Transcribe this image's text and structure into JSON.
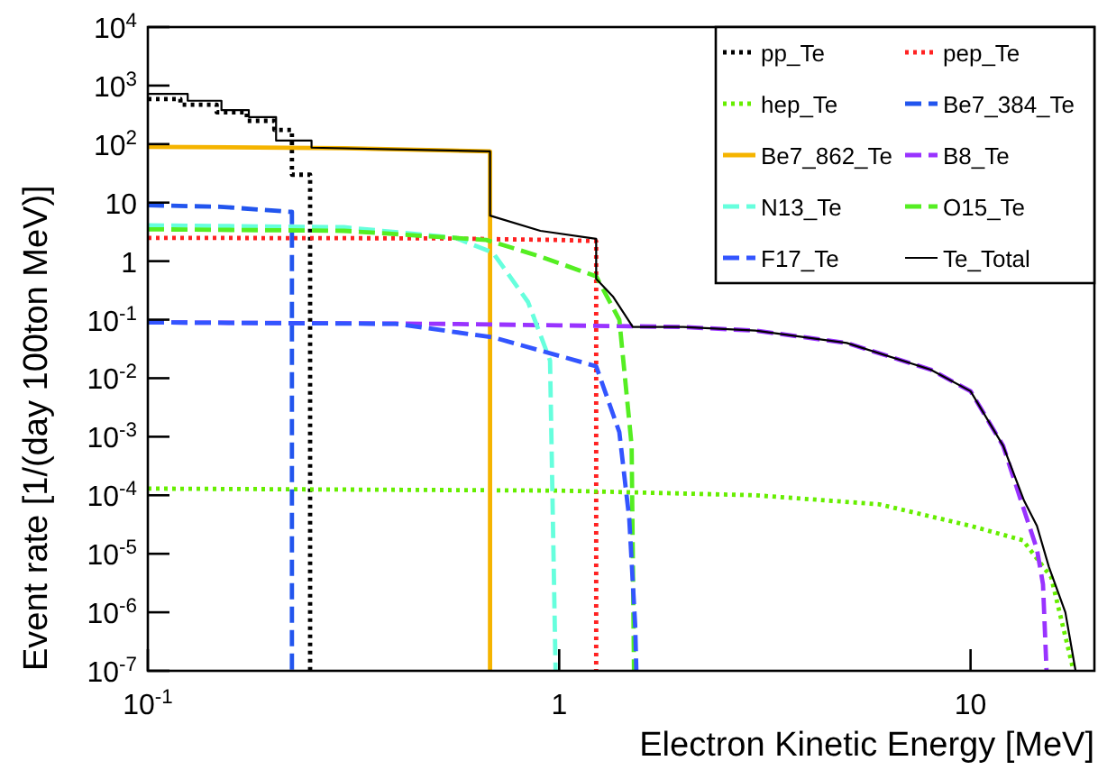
{
  "chart_data": {
    "type": "line",
    "xlabel": "Electron Kinetic Energy [MeV]",
    "ylabel": "Event rate [1/(day 100ton MeV)]",
    "log": "xy",
    "grid": false,
    "legend": "top right",
    "xlim": [
      0.1,
      20
    ],
    "xticks": [
      {
        "value": 0.1,
        "label": "10$^{-1}$"
      },
      1,
      10
    ],
    "ylim": [
      1e-07,
      10000
    ],
    "yticks": [
      {
        "value": 1e-07,
        "label": "10$^{-7}$"
      },
      {
        "value": 1e-06,
        "label": "10$^{-6}$"
      },
      {
        "value": 1e-05,
        "label": "10$^{-5}$"
      },
      {
        "value": 0.0001,
        "label": "10$^{-4}$"
      },
      {
        "value": 0.001,
        "label": "10$^{-3}$"
      },
      {
        "value": 0.01,
        "label": "10$^{-2}$"
      },
      {
        "value": 0.1,
        "label": "10$^{-1}$"
      },
      1,
      10,
      {
        "value": 100,
        "label": "10$^{2}$"
      },
      {
        "value": 1000,
        "label": "10$^{3}$"
      },
      {
        "value": 10000,
        "label": "10$^{4}$"
      }
    ],
    "series": [
      {
        "name": "pp_Te",
        "color": "#000000",
        "line_style": "dotted",
        "x": [
          0.1,
          0.12,
          0.12,
          0.147,
          0.147,
          0.174,
          0.174,
          0.203,
          0.203,
          0.224,
          0.224,
          0.248,
          0.248
        ],
        "values": [
          590,
          590,
          470,
          470,
          350,
          350,
          250,
          250,
          175,
          175,
          30,
          30,
          1e-07
        ]
      },
      {
        "name": "pep_Te",
        "color": "#ff2222",
        "line_style": "dotted",
        "x": [
          0.1,
          0.5,
          1.0,
          1.23,
          1.23
        ],
        "values": [
          2.5,
          2.45,
          2.3,
          2.2,
          1e-07
        ]
      },
      {
        "name": "hep_Te",
        "color": "#66ee00",
        "line_style": "dotted",
        "x": [
          0.1,
          1,
          3,
          6,
          10,
          13.4,
          15.7,
          17.8
        ],
        "values": [
          0.00013,
          0.00012,
          0.0001,
          7e-05,
          3e-05,
          1.7e-05,
          4e-06,
          1e-07
        ]
      },
      {
        "name": "Be7_384_Te",
        "color": "#2255ee",
        "line_style": "dashed",
        "x": [
          0.1,
          0.15,
          0.22,
          0.224,
          0.224
        ],
        "values": [
          9,
          8.5,
          7,
          7,
          1e-07
        ]
      },
      {
        "name": "Be7_862_Te",
        "color": "#f5b400",
        "line_style": "solid",
        "x": [
          0.1,
          0.3,
          0.679,
          0.679
        ],
        "values": [
          90,
          85,
          75,
          1e-07
        ]
      },
      {
        "name": "B8_Te",
        "color": "#9933ff",
        "line_style": "dashed",
        "x": [
          0.1,
          0.5,
          1,
          2,
          3,
          5,
          8,
          10,
          12,
          13.5,
          14.5,
          15,
          15.3
        ],
        "values": [
          0.09,
          0.085,
          0.08,
          0.075,
          0.065,
          0.04,
          0.014,
          0.006,
          0.0007,
          5.5e-05,
          1.2e-05,
          3e-06,
          1e-07
        ]
      },
      {
        "name": "N13_Te",
        "color": "#66ffdd",
        "line_style": "dashed",
        "x": [
          0.1,
          0.3,
          0.56,
          0.69,
          0.84,
          0.95,
          0.98
        ],
        "values": [
          4.1,
          3.8,
          2.5,
          1.4,
          0.2,
          0.02,
          1e-07
        ]
      },
      {
        "name": "O15_Te",
        "color": "#55ee22",
        "line_style": "dashed",
        "x": [
          0.1,
          0.3,
          0.665,
          0.9,
          1.23,
          1.4,
          1.5,
          1.52
        ],
        "values": [
          3.5,
          3.3,
          2.3,
          1.2,
          0.55,
          0.1,
          0.0007,
          1e-07
        ]
      },
      {
        "name": "F17_Te",
        "color": "#3355ff",
        "line_style": "dashed",
        "x": [
          0.1,
          0.4,
          0.69,
          1.23,
          1.4,
          1.48,
          1.53,
          1.54
        ],
        "values": [
          0.09,
          0.085,
          0.05,
          0.016,
          0.0012,
          4e-05,
          6e-07,
          1e-07
        ]
      },
      {
        "name": "Te_Total",
        "color": "#000000",
        "line_style": "solid",
        "x": [
          0.1,
          0.125,
          0.125,
          0.151,
          0.151,
          0.176,
          0.176,
          0.205,
          0.205,
          0.25,
          0.25,
          0.679,
          0.679,
          0.9,
          1.23,
          1.23,
          1.35,
          1.51,
          2,
          3,
          5,
          8,
          10,
          12,
          13.5,
          14.5,
          15.5,
          17,
          18,
          20
        ],
        "values": [
          720,
          720,
          550,
          550,
          380,
          380,
          290,
          290,
          115,
          115,
          87,
          75,
          6,
          3.3,
          2.4,
          0.5,
          0.25,
          0.075,
          0.075,
          0.065,
          0.04,
          0.014,
          0.006,
          0.0007,
          8e-05,
          3e-05,
          6e-06,
          1e-06,
          1e-07,
          1e-07
        ]
      }
    ]
  }
}
